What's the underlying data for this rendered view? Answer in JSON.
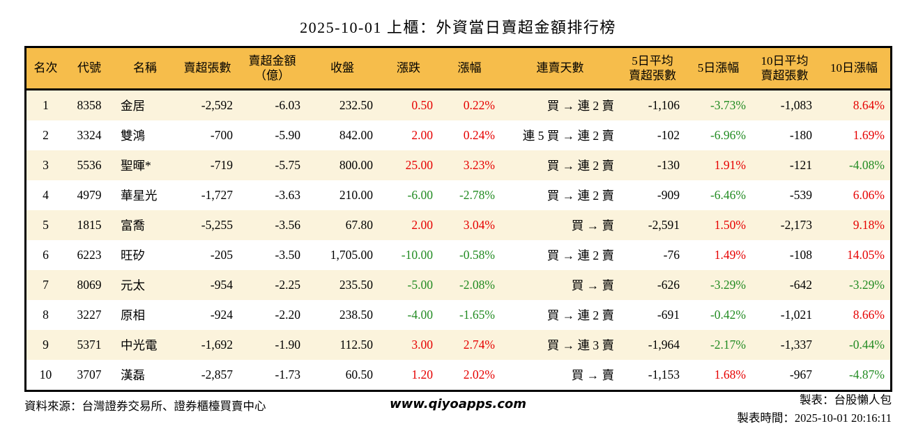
{
  "title": "2025-10-01 上櫃：外資當日賣超金額排行榜",
  "colors": {
    "header_bg": "#F6BD4B",
    "row_alt_bg": "#FBF3DC",
    "up_red": "#E60000",
    "down_green": "#228B22",
    "border": "#000000"
  },
  "header_display": [
    "名次",
    "代號",
    "名稱",
    "賣超張數",
    "賣超金額\n（億）",
    "收盤",
    "漲跌",
    "漲幅",
    "連賣天數",
    "5日平均\n賣超張數",
    "5日漲幅",
    "10日平均\n賣超張數",
    "10日漲幅"
  ],
  "chart_data": {
    "type": "table",
    "title": "2025-10-01 上櫃：外資當日賣超金額排行榜",
    "columns": [
      "名次",
      "代號",
      "名稱",
      "賣超張數",
      "賣超金額（億）",
      "收盤",
      "漲跌",
      "漲幅",
      "連賣天數",
      "5日平均賣超張數",
      "5日漲幅",
      "10日平均賣超張數",
      "10日漲幅"
    ],
    "rows": [
      [
        "1",
        "8358",
        "金居",
        "-2,592",
        "-6.03",
        "232.50",
        "0.50",
        "0.22%",
        "買 → 連 2 賣",
        "-1,106",
        "-3.73%",
        "-1,083",
        "8.64%"
      ],
      [
        "2",
        "3324",
        "雙鴻",
        "-700",
        "-5.90",
        "842.00",
        "2.00",
        "0.24%",
        "連 5 買 → 連 2 賣",
        "-102",
        "-6.96%",
        "-180",
        "1.69%"
      ],
      [
        "3",
        "5536",
        "聖暉*",
        "-719",
        "-5.75",
        "800.00",
        "25.00",
        "3.23%",
        "買 → 連 2 賣",
        "-130",
        "1.91%",
        "-121",
        "-4.08%"
      ],
      [
        "4",
        "4979",
        "華星光",
        "-1,727",
        "-3.63",
        "210.00",
        "-6.00",
        "-2.78%",
        "買 → 連 2 賣",
        "-909",
        "-6.46%",
        "-539",
        "6.06%"
      ],
      [
        "5",
        "1815",
        "富喬",
        "-5,255",
        "-3.56",
        "67.80",
        "2.00",
        "3.04%",
        "買 → 賣",
        "-2,591",
        "1.50%",
        "-2,173",
        "9.18%"
      ],
      [
        "6",
        "6223",
        "旺矽",
        "-205",
        "-3.50",
        "1,705.00",
        "-10.00",
        "-0.58%",
        "買 → 連 2 賣",
        "-76",
        "1.49%",
        "-108",
        "14.05%"
      ],
      [
        "7",
        "8069",
        "元太",
        "-954",
        "-2.25",
        "235.50",
        "-5.00",
        "-2.08%",
        "買 → 賣",
        "-626",
        "-3.29%",
        "-642",
        "-3.29%"
      ],
      [
        "8",
        "3227",
        "原相",
        "-924",
        "-2.20",
        "238.50",
        "-4.00",
        "-1.65%",
        "買 → 連 2 賣",
        "-691",
        "-0.42%",
        "-1,021",
        "8.66%"
      ],
      [
        "9",
        "5371",
        "中光電",
        "-1,692",
        "-1.90",
        "112.50",
        "3.00",
        "2.74%",
        "買 → 連 3 賣",
        "-1,964",
        "-2.17%",
        "-1,337",
        "-0.44%"
      ],
      [
        "10",
        "3707",
        "漢磊",
        "-2,857",
        "-1.73",
        "60.50",
        "1.20",
        "2.02%",
        "買 → 賣",
        "-1,153",
        "1.68%",
        "-967",
        "-4.87%"
      ]
    ]
  },
  "footer": {
    "source": "資料來源：台灣證券交易所、證券櫃檯買賣中心",
    "website": "www.qiyoapps.com",
    "maker": "製表：台股懶人包",
    "timestamp": "製表時間：2025-10-01 20:16:11"
  }
}
